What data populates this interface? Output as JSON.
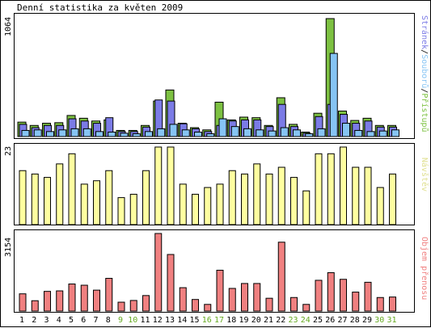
{
  "title": "Denní statistika za květen 2009",
  "colors": {
    "pristupu": "#7dc142",
    "souboru": "#86c4f4",
    "stranek": "#7b7be6",
    "navstev": "#ffffa0",
    "objem": "#f08080",
    "weekend": "#66aa22",
    "weekday": "#000000"
  },
  "legend": {
    "stranek": "Stránek",
    "souboru": "Souborů",
    "pristupu": "Přístupů",
    "sep": "/",
    "navstev": "Návštěv",
    "objem": "Objem přenosu"
  },
  "chart_data": [
    {
      "type": "bar",
      "title": "Denní statistika za květen 2009",
      "ymax_label": "1064",
      "ylim": [
        0,
        1064
      ],
      "categories": [
        "1",
        "2",
        "3",
        "4",
        "5",
        "6",
        "7",
        "8",
        "9",
        "10",
        "11",
        "12",
        "13",
        "14",
        "15",
        "16",
        "17",
        "18",
        "19",
        "20",
        "21",
        "22",
        "23",
        "24",
        "25",
        "26",
        "27",
        "28",
        "29",
        "30",
        "31"
      ],
      "weekend_days": [
        "9",
        "10",
        "16",
        "17",
        "23",
        "24",
        "30",
        "31"
      ],
      "series": [
        {
          "name": "Přístupů",
          "values": [
            130,
            100,
            120,
            125,
            190,
            165,
            140,
            150,
            55,
            55,
            100,
            320,
            420,
            120,
            80,
            60,
            310,
            150,
            175,
            170,
            100,
            350,
            110,
            40,
            210,
            1064,
            230,
            145,
            165,
            100,
            100
          ]
        },
        {
          "name": "Stránek",
          "values": [
            110,
            80,
            100,
            100,
            160,
            140,
            120,
            170,
            45,
            45,
            85,
            330,
            320,
            115,
            70,
            45,
            100,
            140,
            150,
            150,
            90,
            290,
            90,
            30,
            180,
            290,
            200,
            120,
            140,
            85,
            85
          ]
        },
        {
          "name": "Souborů",
          "values": [
            55,
            60,
            45,
            60,
            70,
            70,
            45,
            40,
            30,
            25,
            45,
            70,
            110,
            60,
            40,
            25,
            160,
            90,
            70,
            60,
            50,
            80,
            60,
            25,
            70,
            750,
            120,
            55,
            45,
            50,
            60
          ]
        }
      ]
    },
    {
      "type": "bar",
      "ymax_label": "23",
      "ylim": [
        0,
        23
      ],
      "categories": [
        "1",
        "2",
        "3",
        "4",
        "5",
        "6",
        "7",
        "8",
        "9",
        "10",
        "11",
        "12",
        "13",
        "14",
        "15",
        "16",
        "17",
        "18",
        "19",
        "20",
        "21",
        "22",
        "23",
        "24",
        "25",
        "26",
        "27",
        "28",
        "29",
        "30",
        "31"
      ],
      "series": [
        {
          "name": "Návštěv",
          "values": [
            16,
            15,
            14,
            18,
            21,
            12,
            13,
            16,
            8,
            9,
            16,
            23,
            23,
            12,
            9,
            11,
            12,
            16,
            15,
            18,
            15,
            17,
            14,
            10,
            21,
            21,
            23,
            17,
            17,
            11,
            15
          ]
        }
      ]
    },
    {
      "type": "bar",
      "ymax_label": "3154",
      "ylim": [
        0,
        3154
      ],
      "categories": [
        "1",
        "2",
        "3",
        "4",
        "5",
        "6",
        "7",
        "8",
        "9",
        "10",
        "11",
        "12",
        "13",
        "14",
        "15",
        "16",
        "17",
        "18",
        "19",
        "20",
        "21",
        "22",
        "23",
        "24",
        "25",
        "26",
        "27",
        "28",
        "29",
        "30",
        "31"
      ],
      "series": [
        {
          "name": "Objem přenosu",
          "values": [
            700,
            420,
            800,
            820,
            1100,
            1050,
            850,
            1330,
            360,
            430,
            630,
            3154,
            2300,
            950,
            470,
            270,
            1660,
            920,
            1120,
            1120,
            520,
            2800,
            550,
            270,
            1250,
            1560,
            1290,
            770,
            1170,
            550,
            570
          ]
        }
      ]
    }
  ]
}
